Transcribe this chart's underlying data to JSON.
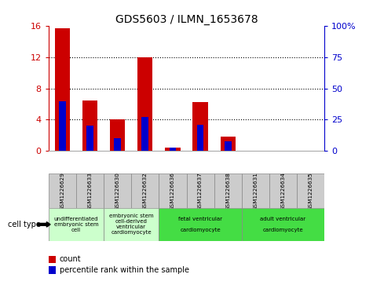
{
  "title": "GDS5603 / ILMN_1653678",
  "samples": [
    "GSM1226629",
    "GSM1226633",
    "GSM1226630",
    "GSM1226632",
    "GSM1226636",
    "GSM1226637",
    "GSM1226638",
    "GSM1226631",
    "GSM1226634",
    "GSM1226635"
  ],
  "counts": [
    15.7,
    6.5,
    4.0,
    12.0,
    0.4,
    6.2,
    1.8,
    0.0,
    0.0,
    0.0
  ],
  "percentiles": [
    40,
    20,
    10,
    27,
    3,
    21,
    8,
    0,
    0,
    0
  ],
  "ylim_left": [
    0,
    16
  ],
  "ylim_right": [
    0,
    100
  ],
  "yticks_left": [
    0,
    4,
    8,
    12,
    16
  ],
  "ytick_labels_left": [
    "0",
    "4",
    "8",
    "12",
    "16"
  ],
  "yticks_right": [
    0,
    25,
    50,
    75,
    100
  ],
  "ytick_labels_right": [
    "0",
    "25",
    "50",
    "75",
    "100%"
  ],
  "bar_color": "#cc0000",
  "percentile_color": "#0000cc",
  "bar_width": 0.55,
  "cell_groups": [
    {
      "label": "undifferentiated\nembryonic stem\ncell",
      "indices": [
        0,
        1
      ],
      "color": "#ccffcc"
    },
    {
      "label": "embryonic stem\ncell-derived\nventricular\ncardiomyocyte",
      "indices": [
        2,
        3
      ],
      "color": "#ccffcc"
    },
    {
      "label": "fetal ventricular\n\ncardiomyocyte",
      "indices": [
        4,
        5,
        6
      ],
      "color": "#44dd44"
    },
    {
      "label": "adult ventricular\n\ncardiomyocyte",
      "indices": [
        7,
        8,
        9
      ],
      "color": "#44dd44"
    }
  ],
  "cell_type_label": "cell type",
  "legend_count_label": "count",
  "legend_percentile_label": "percentile rank within the sample",
  "tick_color_left": "#cc0000",
  "tick_color_right": "#0000cc",
  "bg_color": "#ffffff",
  "sample_bg_color": "#cccccc"
}
